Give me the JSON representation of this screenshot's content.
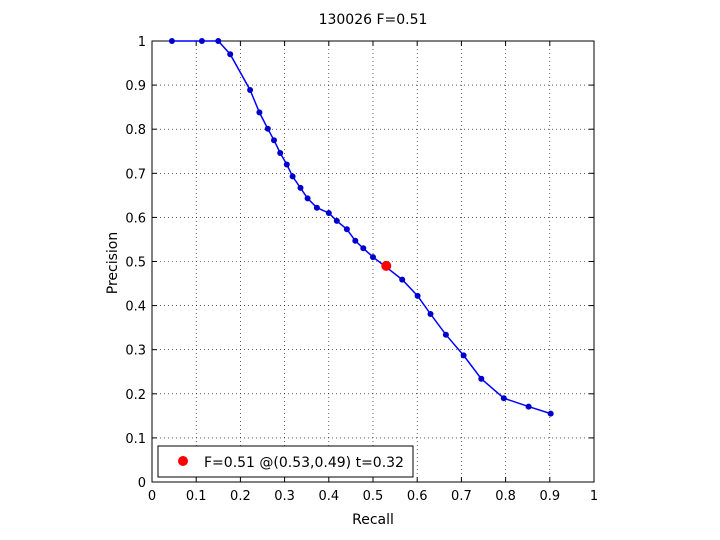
{
  "chart_data": {
    "type": "line",
    "title": "130026 F=0.51",
    "xlabel": "Recall",
    "ylabel": "Precision",
    "xlim": [
      0,
      1
    ],
    "ylim": [
      0,
      1
    ],
    "xticks": [
      "0",
      "0.1",
      "0.2",
      "0.3",
      "0.4",
      "0.5",
      "0.6",
      "0.7",
      "0.8",
      "0.9",
      "1"
    ],
    "yticks": [
      "0",
      "0.1",
      "0.2",
      "0.3",
      "0.4",
      "0.5",
      "0.6",
      "0.7",
      "0.8",
      "0.9",
      "1"
    ],
    "grid": true,
    "grid_style": "dotted",
    "legend_position": "bottom-left",
    "colors": {
      "curve": "#0000ff",
      "marker": "#0000cd",
      "best_point": "#ff0000"
    },
    "series": [
      {
        "x": [
          0.045,
          0.113,
          0.15,
          0.177,
          0.222,
          0.243,
          0.262,
          0.276,
          0.29,
          0.305,
          0.318,
          0.336,
          0.352,
          0.373,
          0.4,
          0.418,
          0.441,
          0.46,
          0.478,
          0.5,
          0.53,
          0.566,
          0.601,
          0.63,
          0.665,
          0.705,
          0.745,
          0.796,
          0.852,
          0.902
        ],
        "y": [
          1.0,
          1.0,
          1.0,
          0.97,
          0.889,
          0.838,
          0.801,
          0.775,
          0.746,
          0.72,
          0.693,
          0.667,
          0.643,
          0.622,
          0.61,
          0.592,
          0.573,
          0.547,
          0.53,
          0.51,
          0.487,
          0.459,
          0.422,
          0.381,
          0.334,
          0.287,
          0.234,
          0.19,
          0.171,
          0.155
        ]
      }
    ],
    "best_point": {
      "recall": 0.53,
      "precision": 0.49,
      "legend_label": "F=0.51 @(0.53,0.49) t=0.32"
    }
  }
}
